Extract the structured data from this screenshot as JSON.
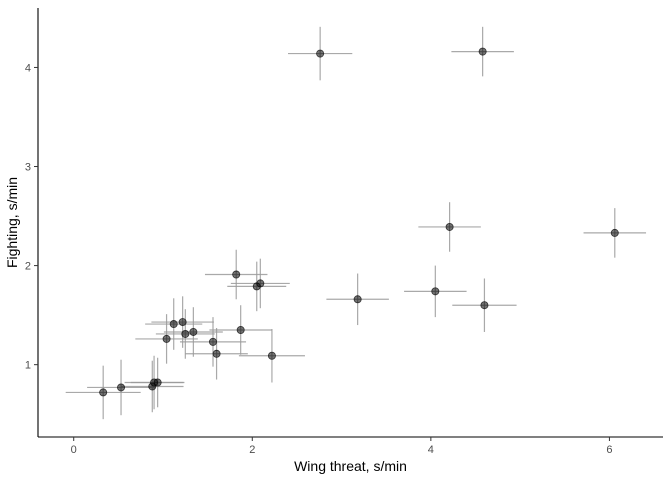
{
  "chart_data": {
    "type": "scatter",
    "title": "",
    "xlabel": "Wing threat, s/min",
    "ylabel": "Fighting, s/min",
    "xlim": [
      -0.4,
      6.6
    ],
    "ylim": [
      0.27,
      4.6
    ],
    "x_ticks": [
      0,
      2,
      4,
      6
    ],
    "y_ticks": [
      1,
      2,
      3,
      4
    ],
    "grid": false,
    "legend": "none",
    "colors": {
      "point": "#000000",
      "errorbar": "#9a9a9a",
      "axis": "#000000",
      "tick_text": "#4d4d4d"
    },
    "points": [
      {
        "x": 0.33,
        "y": 0.72,
        "xerr": 0.42,
        "yerr": 0.27
      },
      {
        "x": 0.53,
        "y": 0.77,
        "xerr": 0.38,
        "yerr": 0.28
      },
      {
        "x": 0.88,
        "y": 0.78,
        "xerr": 0.35,
        "yerr": 0.26
      },
      {
        "x": 0.9,
        "y": 0.82,
        "xerr": 0.33,
        "yerr": 0.27
      },
      {
        "x": 0.94,
        "y": 0.82,
        "xerr": 0.3,
        "yerr": 0.25
      },
      {
        "x": 1.04,
        "y": 1.26,
        "xerr": 0.35,
        "yerr": 0.25
      },
      {
        "x": 1.12,
        "y": 1.41,
        "xerr": 0.32,
        "yerr": 0.26
      },
      {
        "x": 1.22,
        "y": 1.43,
        "xerr": 0.35,
        "yerr": 0.26
      },
      {
        "x": 1.25,
        "y": 1.31,
        "xerr": 0.33,
        "yerr": 0.25
      },
      {
        "x": 1.34,
        "y": 1.33,
        "xerr": 0.33,
        "yerr": 0.25
      },
      {
        "x": 1.56,
        "y": 1.23,
        "xerr": 0.37,
        "yerr": 0.25
      },
      {
        "x": 1.6,
        "y": 1.11,
        "xerr": 0.35,
        "yerr": 0.26
      },
      {
        "x": 1.82,
        "y": 1.91,
        "xerr": 0.35,
        "yerr": 0.25
      },
      {
        "x": 1.87,
        "y": 1.35,
        "xerr": 0.35,
        "yerr": 0.25
      },
      {
        "x": 2.05,
        "y": 1.79,
        "xerr": 0.33,
        "yerr": 0.25
      },
      {
        "x": 2.09,
        "y": 1.82,
        "xerr": 0.33,
        "yerr": 0.25
      },
      {
        "x": 2.22,
        "y": 1.09,
        "xerr": 0.37,
        "yerr": 0.27
      },
      {
        "x": 2.76,
        "y": 4.14,
        "xerr": 0.36,
        "yerr": 0.27
      },
      {
        "x": 3.18,
        "y": 1.66,
        "xerr": 0.35,
        "yerr": 0.26
      },
      {
        "x": 4.05,
        "y": 1.74,
        "xerr": 0.35,
        "yerr": 0.26
      },
      {
        "x": 4.21,
        "y": 2.39,
        "xerr": 0.35,
        "yerr": 0.25
      },
      {
        "x": 4.58,
        "y": 4.16,
        "xerr": 0.35,
        "yerr": 0.25
      },
      {
        "x": 4.6,
        "y": 1.6,
        "xerr": 0.36,
        "yerr": 0.27
      },
      {
        "x": 6.06,
        "y": 2.33,
        "xerr": 0.35,
        "yerr": 0.25
      }
    ]
  }
}
